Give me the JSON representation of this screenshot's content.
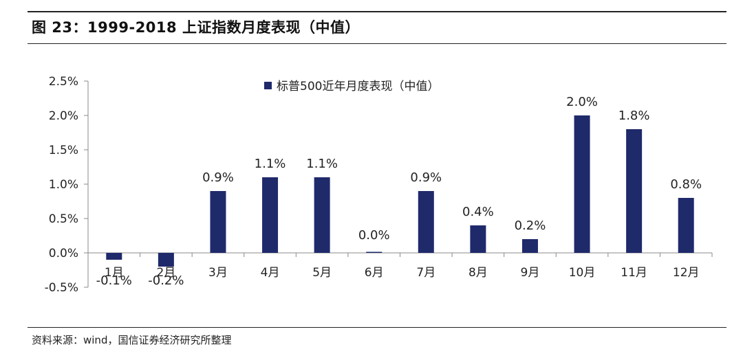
{
  "figure": {
    "title": "图 23：1999-2018 上证指数月度表现（中值）",
    "source": "资料来源：wind，国信证券经济研究所整理"
  },
  "colors": {
    "bar": "#1f2a6b",
    "axis": "#888888",
    "text": "#222222"
  },
  "chart_data": {
    "type": "bar",
    "categories": [
      "1月",
      "2月",
      "3月",
      "4月",
      "5月",
      "6月",
      "7月",
      "8月",
      "9月",
      "10月",
      "11月",
      "12月"
    ],
    "series": [
      {
        "name": "标普500近年月度表现（中值）",
        "values": [
          -0.1,
          -0.2,
          0.9,
          1.1,
          1.1,
          0.0,
          0.9,
          0.4,
          0.2,
          2.0,
          1.8,
          0.8
        ],
        "data_labels": [
          "-0.1%",
          "-0.2%",
          "0.9%",
          "1.1%",
          "1.1%",
          "0.0%",
          "0.9%",
          "0.4%",
          "0.2%",
          "2.0%",
          "1.8%",
          "0.8%"
        ]
      }
    ],
    "y_ticks": [
      2.5,
      2.0,
      1.5,
      1.0,
      0.5,
      0.0,
      -0.5
    ],
    "y_tick_labels": [
      "2.5%",
      "2.0%",
      "1.5%",
      "1.0%",
      "0.5%",
      "0.0%",
      "-0.5%"
    ],
    "ylim": [
      -0.5,
      2.5
    ],
    "grid": false,
    "legend_position": "top-center"
  }
}
